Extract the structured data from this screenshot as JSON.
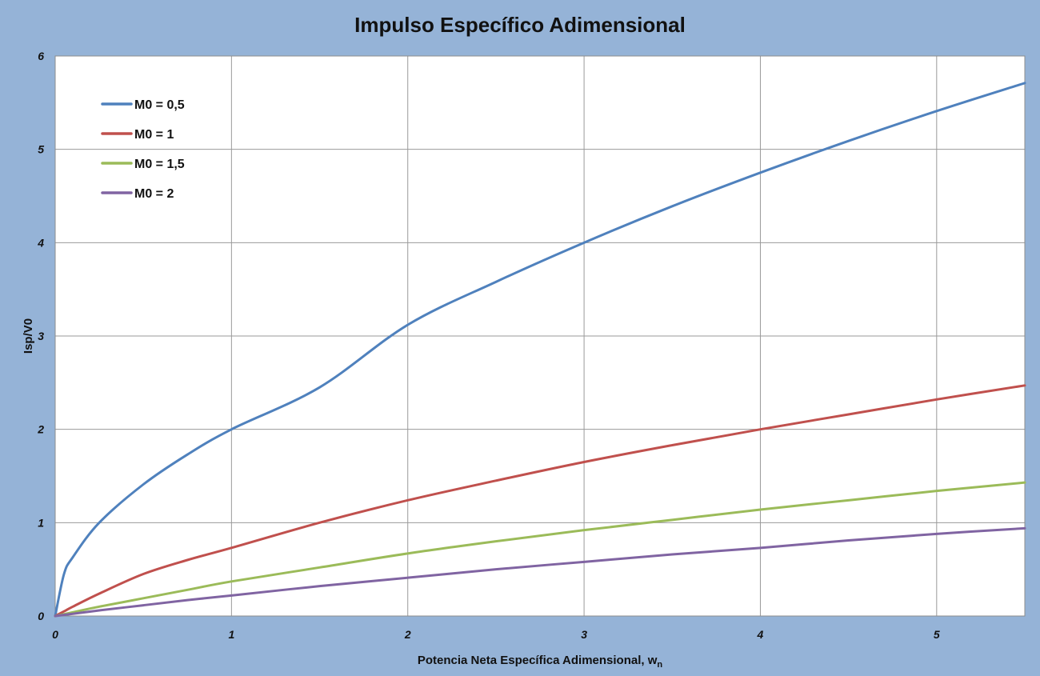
{
  "chart_data": {
    "type": "line",
    "title": "Impulso Específico Adimensional",
    "xlabel": "Potencia Neta Específica Adimensional, w",
    "xlabel_subscript": "n",
    "ylabel": "Isp/V0",
    "xlim": [
      0,
      5.5
    ],
    "ylim": [
      0,
      6
    ],
    "x_ticks": [
      "0",
      "1",
      "2",
      "3",
      "4",
      "5"
    ],
    "y_ticks": [
      "0",
      "1",
      "2",
      "3",
      "4",
      "5",
      "6"
    ],
    "grid": true,
    "legend_position": "top-left",
    "x": [
      0,
      0.05,
      0.1,
      0.25,
      0.5,
      0.75,
      1,
      1.5,
      2,
      2.5,
      3,
      3.5,
      4,
      4.5,
      5,
      5.5
    ],
    "series": [
      {
        "name": "M0 = 0,5",
        "color": "#4F81BD",
        "values": [
          0,
          0.45,
          0.63,
          1.0,
          1.41,
          1.73,
          2.0,
          2.45,
          3.12,
          3.58,
          4.0,
          4.39,
          4.75,
          5.09,
          5.41,
          5.71
        ]
      },
      {
        "name": "M0 = 1",
        "color": "#C0504D",
        "values": [
          0,
          0.05,
          0.1,
          0.24,
          0.45,
          0.6,
          0.73,
          1.0,
          1.24,
          1.45,
          1.65,
          1.83,
          2.0,
          2.16,
          2.32,
          2.47
        ]
      },
      {
        "name": "M0 = 1,5",
        "color": "#9BBB59",
        "values": [
          0,
          0.02,
          0.04,
          0.1,
          0.19,
          0.28,
          0.37,
          0.52,
          0.67,
          0.8,
          0.92,
          1.03,
          1.14,
          1.24,
          1.34,
          1.43
        ]
      },
      {
        "name": "M0 = 2",
        "color": "#8064A2",
        "values": [
          0,
          0.012,
          0.024,
          0.06,
          0.115,
          0.17,
          0.22,
          0.32,
          0.41,
          0.5,
          0.58,
          0.66,
          0.73,
          0.81,
          0.88,
          0.94
        ]
      }
    ]
  }
}
